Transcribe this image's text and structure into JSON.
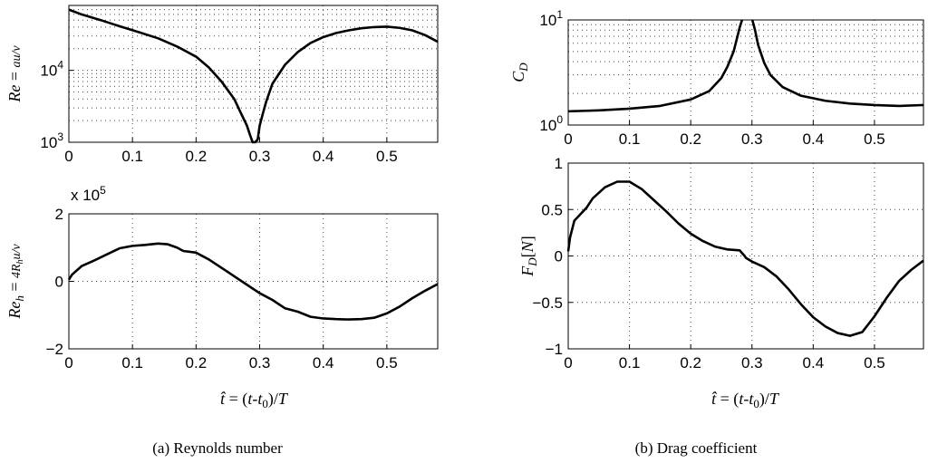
{
  "captions": {
    "left": "(a)  Reynolds number",
    "right": "(b)  Drag coefficient"
  },
  "chart_data": [
    {
      "id": "re",
      "type": "line",
      "title": "",
      "ylabel": "Re = au/ν",
      "yscale": "log",
      "xlim": [
        0,
        0.58
      ],
      "ylim": [
        1000,
        80000
      ],
      "x_ticks": [
        0,
        0.1,
        0.2,
        0.3,
        0.4,
        0.5
      ],
      "x_tick_labels": [
        "0",
        "0.1",
        "0.2",
        "0.3",
        "0.4",
        "0.5"
      ],
      "y_ticks": [
        1000,
        10000
      ],
      "y_tick_base": "10",
      "y_tick_exponents": [
        "3",
        "4"
      ],
      "grid": true,
      "series": [
        {
          "name": "Re",
          "x": [
            0,
            0.02,
            0.05,
            0.08,
            0.11,
            0.14,
            0.17,
            0.2,
            0.22,
            0.24,
            0.26,
            0.27,
            0.28,
            0.285,
            0.289,
            0.293,
            0.297,
            0.3,
            0.305,
            0.31,
            0.32,
            0.34,
            0.36,
            0.38,
            0.4,
            0.42,
            0.44,
            0.46,
            0.48,
            0.5,
            0.52,
            0.54,
            0.56,
            0.58
          ],
          "y": [
            70000,
            60000,
            50000,
            41000,
            34000,
            28000,
            21500,
            15500,
            11000,
            7000,
            4000,
            2600,
            1700,
            1250,
            1000,
            1000,
            1100,
            1700,
            2500,
            3600,
            6500,
            12000,
            18000,
            24000,
            29000,
            33000,
            36000,
            38500,
            40000,
            40500,
            39000,
            36000,
            31000,
            25000
          ]
        }
      ]
    },
    {
      "id": "reh",
      "type": "line",
      "ylabel": "Re_h = 4R_h u/ν",
      "xlabel": "t̂ = (t-t0)/T",
      "yscale": "linear",
      "xlim": [
        0,
        0.58
      ],
      "ylim": [
        -2,
        2
      ],
      "x_ticks": [
        0,
        0.1,
        0.2,
        0.3,
        0.4,
        0.5
      ],
      "x_tick_labels": [
        "0",
        "0.1",
        "0.2",
        "0.3",
        "0.4",
        "0.5"
      ],
      "y_ticks": [
        -2,
        0,
        2
      ],
      "y_tick_labels": [
        "−2",
        "0",
        "2"
      ],
      "multiplier_label": "x 10",
      "multiplier_exponent": "5",
      "grid": true,
      "series": [
        {
          "name": "Re_h",
          "x": [
            0,
            0.005,
            0.02,
            0.04,
            0.06,
            0.08,
            0.1,
            0.12,
            0.14,
            0.155,
            0.17,
            0.18,
            0.2,
            0.22,
            0.24,
            0.26,
            0.28,
            0.3,
            0.32,
            0.34,
            0.36,
            0.38,
            0.4,
            0.42,
            0.44,
            0.46,
            0.48,
            0.5,
            0.52,
            0.54,
            0.56,
            0.58
          ],
          "y": [
            0.05,
            0.2,
            0.45,
            0.62,
            0.8,
            0.98,
            1.05,
            1.08,
            1.12,
            1.1,
            1.0,
            0.9,
            0.85,
            0.65,
            0.4,
            0.15,
            -0.1,
            -0.35,
            -0.55,
            -0.8,
            -0.9,
            -1.05,
            -1.1,
            -1.12,
            -1.13,
            -1.12,
            -1.08,
            -0.95,
            -0.75,
            -0.5,
            -0.28,
            -0.08
          ]
        }
      ]
    },
    {
      "id": "cd",
      "type": "line",
      "ylabel": "C_D",
      "yscale": "log",
      "xlim": [
        0,
        0.58
      ],
      "ylim": [
        1,
        10
      ],
      "x_ticks": [
        0,
        0.1,
        0.2,
        0.3,
        0.4,
        0.5
      ],
      "x_tick_labels": [
        "0",
        "0.1",
        "0.2",
        "0.3",
        "0.4",
        "0.5"
      ],
      "y_ticks": [
        1,
        10
      ],
      "y_tick_base": "10",
      "y_tick_exponents": [
        "0",
        "1"
      ],
      "grid": true,
      "series": [
        {
          "name": "C_D",
          "x": [
            0,
            0.05,
            0.1,
            0.15,
            0.2,
            0.23,
            0.25,
            0.26,
            0.27,
            0.275,
            0.28,
            0.2838,
            null,
            0.3006,
            0.305,
            0.31,
            0.32,
            0.33,
            0.35,
            0.38,
            0.42,
            0.46,
            0.5,
            0.54,
            0.58
          ],
          "y": [
            1.35,
            1.38,
            1.43,
            1.52,
            1.75,
            2.1,
            2.8,
            3.6,
            5.0,
            6.5,
            8.5,
            10,
            null,
            10,
            8.0,
            5.8,
            3.9,
            3.0,
            2.3,
            1.9,
            1.7,
            1.6,
            1.55,
            1.52,
            1.55
          ]
        }
      ]
    },
    {
      "id": "fd",
      "type": "line",
      "ylabel": "F_D[N]",
      "xlabel": "t̂ = (t-t0)/T",
      "yscale": "linear",
      "xlim": [
        0,
        0.58
      ],
      "ylim": [
        -1,
        1
      ],
      "x_ticks": [
        0,
        0.1,
        0.2,
        0.3,
        0.4,
        0.5
      ],
      "x_tick_labels": [
        "0",
        "0.1",
        "0.2",
        "0.3",
        "0.4",
        "0.5"
      ],
      "y_ticks": [
        -1,
        -0.5,
        0,
        0.5,
        1
      ],
      "y_tick_labels": [
        "−1",
        "−0.5",
        "0",
        "0.5",
        "1"
      ],
      "grid": true,
      "series": [
        {
          "name": "F_D",
          "x": [
            0,
            0.003,
            0.01,
            0.02,
            0.03,
            0.04,
            0.06,
            0.08,
            0.1,
            0.12,
            0.14,
            0.16,
            0.18,
            0.2,
            0.22,
            0.24,
            0.26,
            0.28,
            0.288,
            0.29,
            0.295,
            0.3,
            0.32,
            0.34,
            0.36,
            0.38,
            0.4,
            0.42,
            0.44,
            0.46,
            0.48,
            0.5,
            0.52,
            0.54,
            0.56,
            0.58
          ],
          "y": [
            0.05,
            0.2,
            0.38,
            0.45,
            0.52,
            0.62,
            0.74,
            0.8,
            0.8,
            0.72,
            0.6,
            0.48,
            0.35,
            0.24,
            0.16,
            0.1,
            0.07,
            0.06,
            0.0,
            -0.02,
            -0.04,
            -0.06,
            -0.12,
            -0.22,
            -0.36,
            -0.52,
            -0.66,
            -0.76,
            -0.83,
            -0.86,
            -0.82,
            -0.65,
            -0.45,
            -0.27,
            -0.15,
            -0.05
          ]
        }
      ]
    }
  ]
}
